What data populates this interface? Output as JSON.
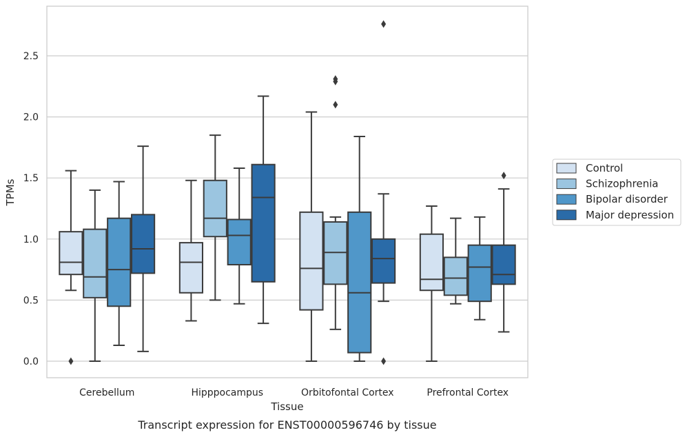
{
  "chart_data": {
    "type": "box",
    "title": "",
    "caption": "Transcript expression for ENST00000596746 by tissue",
    "xlabel": "Tissue",
    "ylabel": "TPMs",
    "ylim": [
      -0.13,
      2.91
    ],
    "yticks": [
      "0.0",
      "0.5",
      "1.0",
      "1.5",
      "2.0",
      "2.5"
    ],
    "categories": [
      "Cerebellum",
      "Hipppocampus",
      "Orbitofontal Cortex",
      "Prefrontal Cortex"
    ],
    "grid": "horizontal",
    "legend_position": "right",
    "series": [
      {
        "name": "Control",
        "color": "#d3e2f2",
        "boxes": [
          {
            "min": 0.58,
            "q1": 0.71,
            "median": 0.81,
            "q3": 1.06,
            "max": 1.56,
            "outliers": [
              0.0
            ]
          },
          {
            "min": 0.33,
            "q1": 0.56,
            "median": 0.81,
            "q3": 0.97,
            "max": 1.48,
            "outliers": []
          },
          {
            "min": 0.0,
            "q1": 0.42,
            "median": 0.76,
            "q3": 1.22,
            "max": 2.04,
            "outliers": []
          },
          {
            "min": 0.0,
            "q1": 0.58,
            "median": 0.67,
            "q3": 1.04,
            "max": 1.27,
            "outliers": []
          }
        ]
      },
      {
        "name": "Schizophrenia",
        "color": "#9bc5e0",
        "boxes": [
          {
            "min": 0.0,
            "q1": 0.52,
            "median": 0.69,
            "q3": 1.08,
            "max": 1.4,
            "outliers": []
          },
          {
            "min": 0.5,
            "q1": 1.02,
            "median": 1.17,
            "q3": 1.48,
            "max": 1.85,
            "outliers": []
          },
          {
            "min": 0.26,
            "q1": 0.63,
            "median": 0.89,
            "q3": 1.14,
            "max": 1.18,
            "outliers": [
              2.1,
              2.29,
              2.31
            ]
          },
          {
            "min": 0.47,
            "q1": 0.54,
            "median": 0.68,
            "q3": 0.85,
            "max": 1.17,
            "outliers": []
          }
        ]
      },
      {
        "name": "Bipolar disorder",
        "color": "#5097c9",
        "boxes": [
          {
            "min": 0.13,
            "q1": 0.45,
            "median": 0.75,
            "q3": 1.17,
            "max": 1.47,
            "outliers": []
          },
          {
            "min": 0.47,
            "q1": 0.79,
            "median": 1.03,
            "q3": 1.16,
            "max": 1.58,
            "outliers": []
          },
          {
            "min": 0.0,
            "q1": 0.07,
            "median": 0.56,
            "q3": 1.22,
            "max": 1.84,
            "outliers": []
          },
          {
            "min": 0.34,
            "q1": 0.49,
            "median": 0.77,
            "q3": 0.95,
            "max": 1.18,
            "outliers": []
          }
        ]
      },
      {
        "name": "Major depression",
        "color": "#2a6ba8",
        "boxes": [
          {
            "min": 0.08,
            "q1": 0.72,
            "median": 0.92,
            "q3": 1.2,
            "max": 1.76,
            "outliers": []
          },
          {
            "min": 0.31,
            "q1": 0.65,
            "median": 1.34,
            "q3": 1.61,
            "max": 2.17,
            "outliers": []
          },
          {
            "min": 0.49,
            "q1": 0.64,
            "median": 0.84,
            "q3": 1.0,
            "max": 1.37,
            "outliers": [
              2.76,
              0.0
            ]
          },
          {
            "min": 0.24,
            "q1": 0.63,
            "median": 0.71,
            "q3": 0.95,
            "max": 1.41,
            "outliers": [
              1.52
            ]
          }
        ]
      }
    ]
  }
}
